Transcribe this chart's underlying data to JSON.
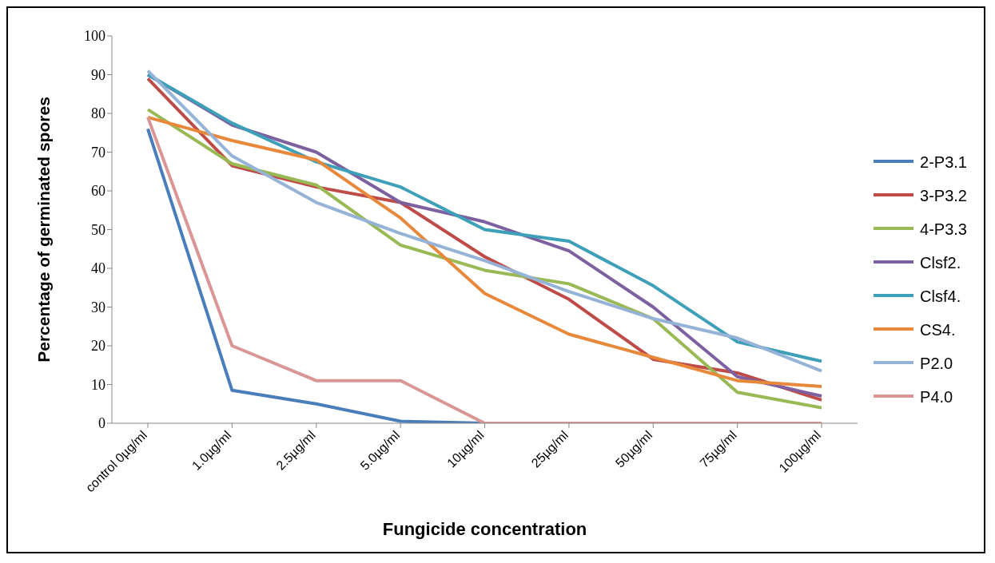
{
  "chart_data": {
    "type": "line",
    "xlabel": "Fungicide concentration",
    "ylabel": "Percentage of germinated spores",
    "categories": [
      "control 0µg/ml",
      "1.0µg/ml",
      "2.5µg/ml",
      "5.0µg/ml",
      "10µg/ml",
      "25µg/ml",
      "50µg/ml",
      "75µg/ml",
      "100µg/ml"
    ],
    "ylim": [
      0,
      100
    ],
    "yticks": [
      0,
      10,
      20,
      30,
      40,
      50,
      60,
      70,
      80,
      90,
      100
    ],
    "grid": false,
    "legend": "right",
    "marker": "none",
    "series": [
      {
        "name": "2-P3.1",
        "color": "#4a7ebb",
        "values": [
          76,
          8.5,
          5,
          0.5,
          0,
          null,
          null,
          null,
          null
        ]
      },
      {
        "name": "3-P3.2",
        "color": "#be4b48",
        "values": [
          89,
          66.5,
          61,
          57,
          43,
          32,
          16.5,
          13,
          6
        ]
      },
      {
        "name": "4-P3.3",
        "color": "#98b954",
        "values": [
          81,
          67,
          61.5,
          46,
          39.5,
          36,
          27,
          8,
          4
        ]
      },
      {
        "name": "Clsf2.",
        "color": "#7d60a0",
        "values": [
          90,
          77,
          70,
          57,
          52,
          44.5,
          30,
          12,
          7
        ]
      },
      {
        "name": "Clsf4.",
        "color": "#3d9fb8",
        "values": [
          90,
          77.5,
          67.5,
          61,
          50,
          47,
          35.5,
          21,
          16
        ]
      },
      {
        "name": "CS4.",
        "color": "#e8883a",
        "values": [
          79,
          73,
          68,
          53,
          33.5,
          23,
          17,
          11,
          9.5
        ]
      },
      {
        "name": "P2.0",
        "color": "#95b3d7",
        "values": [
          91,
          69,
          57,
          49,
          42,
          34,
          27,
          22,
          13.5
        ]
      },
      {
        "name": "P4.0",
        "color": "#d99694",
        "values": [
          79,
          20,
          11,
          11,
          0,
          0,
          0,
          0,
          0
        ]
      }
    ]
  }
}
